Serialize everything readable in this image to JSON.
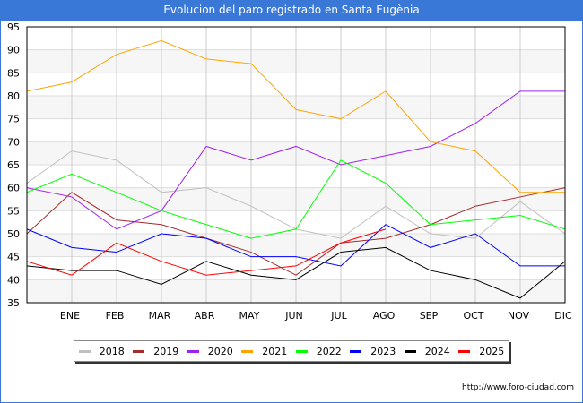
{
  "chart_data": {
    "type": "line",
    "title": "Evolucion del paro registrado en Santa Eugènia",
    "xlabel": "",
    "ylabel": "",
    "x": [
      "",
      "ENE",
      "FEB",
      "MAR",
      "ABR",
      "MAY",
      "JUN",
      "JUL",
      "AGO",
      "SEP",
      "OCT",
      "NOV",
      "DIC"
    ],
    "ylim": [
      35,
      95
    ],
    "yticks": [
      35,
      40,
      45,
      50,
      55,
      60,
      65,
      70,
      75,
      80,
      85,
      90,
      95
    ],
    "grid": true,
    "legend_position": "bottom",
    "series": [
      {
        "name": "2018",
        "color": "#c0c0c0",
        "values": [
          61,
          68,
          66,
          59,
          60,
          56,
          51,
          49,
          56,
          50,
          49,
          57,
          50
        ]
      },
      {
        "name": "2019",
        "color": "#a52a2a",
        "values": [
          50,
          59,
          53,
          52,
          49,
          46,
          41,
          48,
          49,
          52,
          56,
          58,
          60
        ]
      },
      {
        "name": "2020",
        "color": "#a020f0",
        "values": [
          60,
          58,
          51,
          55,
          69,
          66,
          69,
          65,
          67,
          69,
          74,
          81,
          81
        ]
      },
      {
        "name": "2021",
        "color": "#ffa500",
        "values": [
          81,
          83,
          89,
          92,
          88,
          87,
          77,
          75,
          81,
          70,
          68,
          59,
          59
        ]
      },
      {
        "name": "2022",
        "color": "#00ff00",
        "values": [
          59,
          63,
          59,
          55,
          52,
          49,
          51,
          66,
          61,
          52,
          53,
          54,
          51
        ]
      },
      {
        "name": "2023",
        "color": "#0000ff",
        "values": [
          51,
          47,
          46,
          50,
          49,
          45,
          45,
          43,
          52,
          47,
          50,
          43,
          43
        ]
      },
      {
        "name": "2024",
        "color": "#000000",
        "values": [
          43,
          42,
          42,
          39,
          44,
          41,
          40,
          46,
          47,
          42,
          40,
          36,
          44
        ]
      },
      {
        "name": "2025",
        "color": "#ff0000",
        "values": [
          44,
          41,
          48,
          44,
          41,
          42,
          43,
          48,
          51,
          null,
          null,
          null,
          null
        ]
      }
    ]
  },
  "header": {
    "title": "Evolucion del paro registrado en Santa Eugènia"
  },
  "footer": {
    "source": "http://www.foro-ciudad.com"
  }
}
